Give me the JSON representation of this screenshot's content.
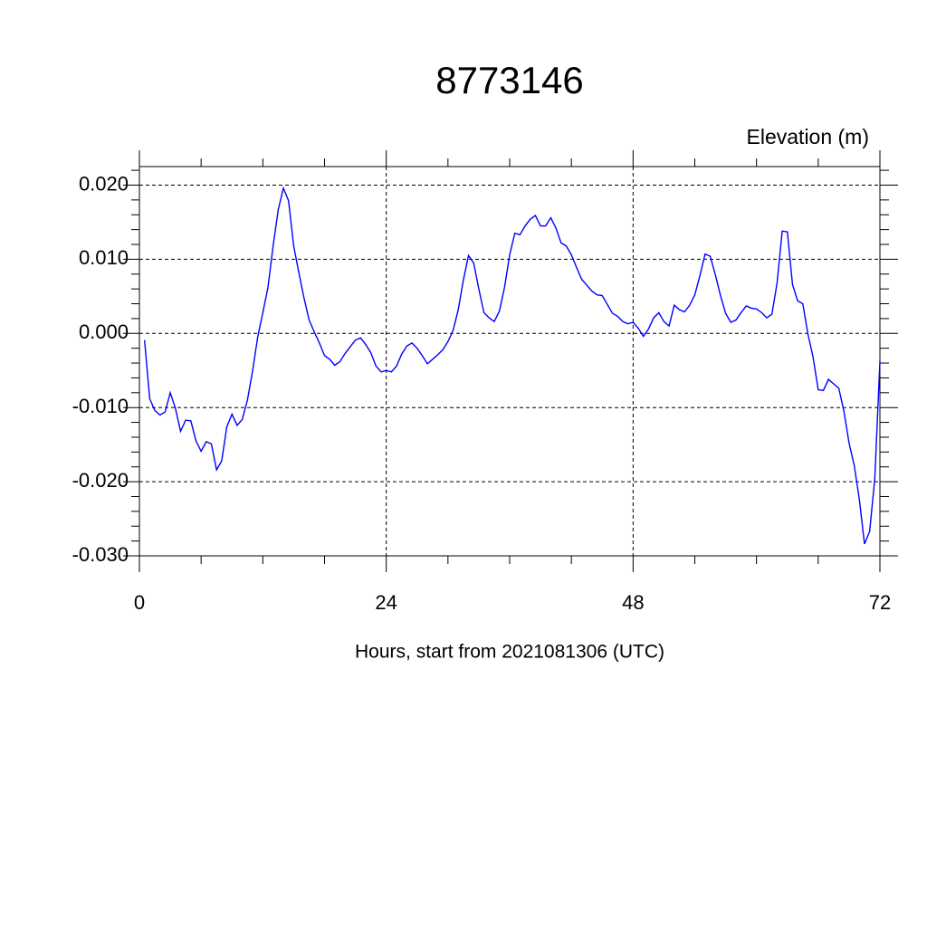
{
  "chart_data": {
    "type": "line",
    "title": "8773146",
    "subtitle": "Elevation (m)",
    "xlabel": "Hours, start from 2021081306 (UTC)",
    "xlim": [
      0,
      72
    ],
    "ylim": [
      -0.03,
      0.0225
    ],
    "xticks": [
      0,
      24,
      48,
      72
    ],
    "xminorticks": [
      6,
      12,
      18,
      30,
      36,
      42,
      54,
      60,
      66
    ],
    "yticks": [
      {
        "value": -0.03,
        "label": "-0.030"
      },
      {
        "value": -0.02,
        "label": "-0.020"
      },
      {
        "value": -0.01,
        "label": "-0.010"
      },
      {
        "value": 0,
        "label": "0.000"
      },
      {
        "value": 0.01,
        "label": "0.010"
      },
      {
        "value": 0.02,
        "label": "0.020"
      }
    ],
    "yminorticks": [
      -0.028,
      -0.026,
      -0.024,
      -0.022,
      -0.018,
      -0.016,
      -0.014,
      -0.012,
      -0.008,
      -0.006,
      -0.004,
      -0.002,
      0.002,
      0.004,
      0.006,
      0.008,
      0.012,
      0.014,
      0.016,
      0.018,
      0.022
    ],
    "grid": true,
    "series": [
      {
        "name": "Elevation",
        "color": "#0000ff",
        "x": [
          0.5,
          1,
          1.5,
          2,
          2.5,
          3,
          3.5,
          4,
          4.5,
          5,
          5.5,
          6,
          6.5,
          7,
          7.5,
          8,
          8.5,
          9,
          9.5,
          10,
          10.5,
          11,
          11.5,
          12,
          12.5,
          13,
          13.5,
          14,
          14.5,
          15,
          15.5,
          16,
          16.5,
          17,
          17.5,
          18,
          18.5,
          19,
          19.5,
          20,
          20.5,
          21,
          21.5,
          22,
          22.5,
          23,
          23.5,
          24,
          24.5,
          25,
          25.5,
          26,
          26.5,
          27,
          27.5,
          28,
          28.5,
          29,
          29.5,
          30,
          30.5,
          31,
          31.5,
          32,
          32.5,
          33,
          33.5,
          34,
          34.5,
          35,
          35.5,
          36,
          36.5,
          37,
          37.5,
          38,
          38.5,
          39,
          39.5,
          40,
          40.5,
          41,
          41.5,
          42,
          42.5,
          43,
          43.5,
          44,
          44.5,
          45,
          45.5,
          46,
          46.5,
          47,
          47.5,
          48,
          48.5,
          49,
          49.5,
          50,
          50.5,
          51,
          51.5,
          52,
          52.5,
          53,
          53.5,
          54,
          54.5,
          55,
          55.5,
          56,
          56.5,
          57,
          57.5,
          58,
          58.5,
          59,
          59.5,
          60,
          60.5,
          61,
          61.5,
          62,
          62.5,
          63,
          63.5,
          64,
          64.5,
          65,
          65.5,
          66,
          66.5,
          67,
          67.5,
          68,
          68.5,
          69,
          69.5,
          70,
          70.5,
          71,
          71.5,
          72
        ],
        "values": [
          -0.0009,
          -0.0088,
          -0.0104,
          -0.011,
          -0.0106,
          -0.008,
          -0.0101,
          -0.0132,
          -0.0117,
          -0.0118,
          -0.0145,
          -0.0159,
          -0.0146,
          -0.0149,
          -0.0184,
          -0.0172,
          -0.0126,
          -0.0109,
          -0.0124,
          -0.0116,
          -0.009,
          -0.0051,
          -0.0005,
          0.0028,
          0.0062,
          0.0118,
          0.0167,
          0.0196,
          0.0179,
          0.0118,
          0.0082,
          0.0048,
          0.0018,
          0.0002,
          -0.0013,
          -0.003,
          -0.0035,
          -0.0043,
          -0.0038,
          -0.0027,
          -0.0018,
          -0.0009,
          -0.0006,
          -0.0015,
          -0.0026,
          -0.0044,
          -0.0052,
          -0.005,
          -0.0052,
          -0.0044,
          -0.0028,
          -0.0017,
          -0.0013,
          -0.002,
          -0.003,
          -0.0041,
          -0.0035,
          -0.0029,
          -0.0022,
          -0.0011,
          0.0004,
          0.0032,
          0.0072,
          0.0105,
          0.0095,
          0.006,
          0.0028,
          0.0021,
          0.0016,
          0.003,
          0.0062,
          0.0106,
          0.0135,
          0.0133,
          0.0145,
          0.0154,
          0.0159,
          0.0145,
          0.0145,
          0.0156,
          0.0142,
          0.0122,
          0.0118,
          0.0106,
          0.0089,
          0.0073,
          0.0065,
          0.0057,
          0.0052,
          0.0051,
          0.0039,
          0.0027,
          0.0023,
          0.0016,
          0.0013,
          0.0015,
          0.0007,
          -0.0004,
          0.0006,
          0.0021,
          0.0028,
          0.0016,
          0.001,
          0.0038,
          0.0032,
          0.0029,
          0.0038,
          0.0052,
          0.0078,
          0.0107,
          0.0104,
          0.0079,
          0.0051,
          0.0027,
          0.0015,
          0.0018,
          0.0028,
          0.0037,
          0.0034,
          0.0033,
          0.0028,
          0.0021,
          0.0026,
          0.0068,
          0.0138,
          0.0137,
          0.0066,
          0.0044,
          0.004,
          -0.0001,
          -0.0032,
          -0.0076,
          -0.0077,
          -0.0062,
          -0.0068,
          -0.0074,
          -0.0105,
          -0.0148,
          -0.0178,
          -0.0224,
          -0.0284,
          -0.0267,
          -0.0196,
          -0.0038
        ]
      }
    ]
  }
}
